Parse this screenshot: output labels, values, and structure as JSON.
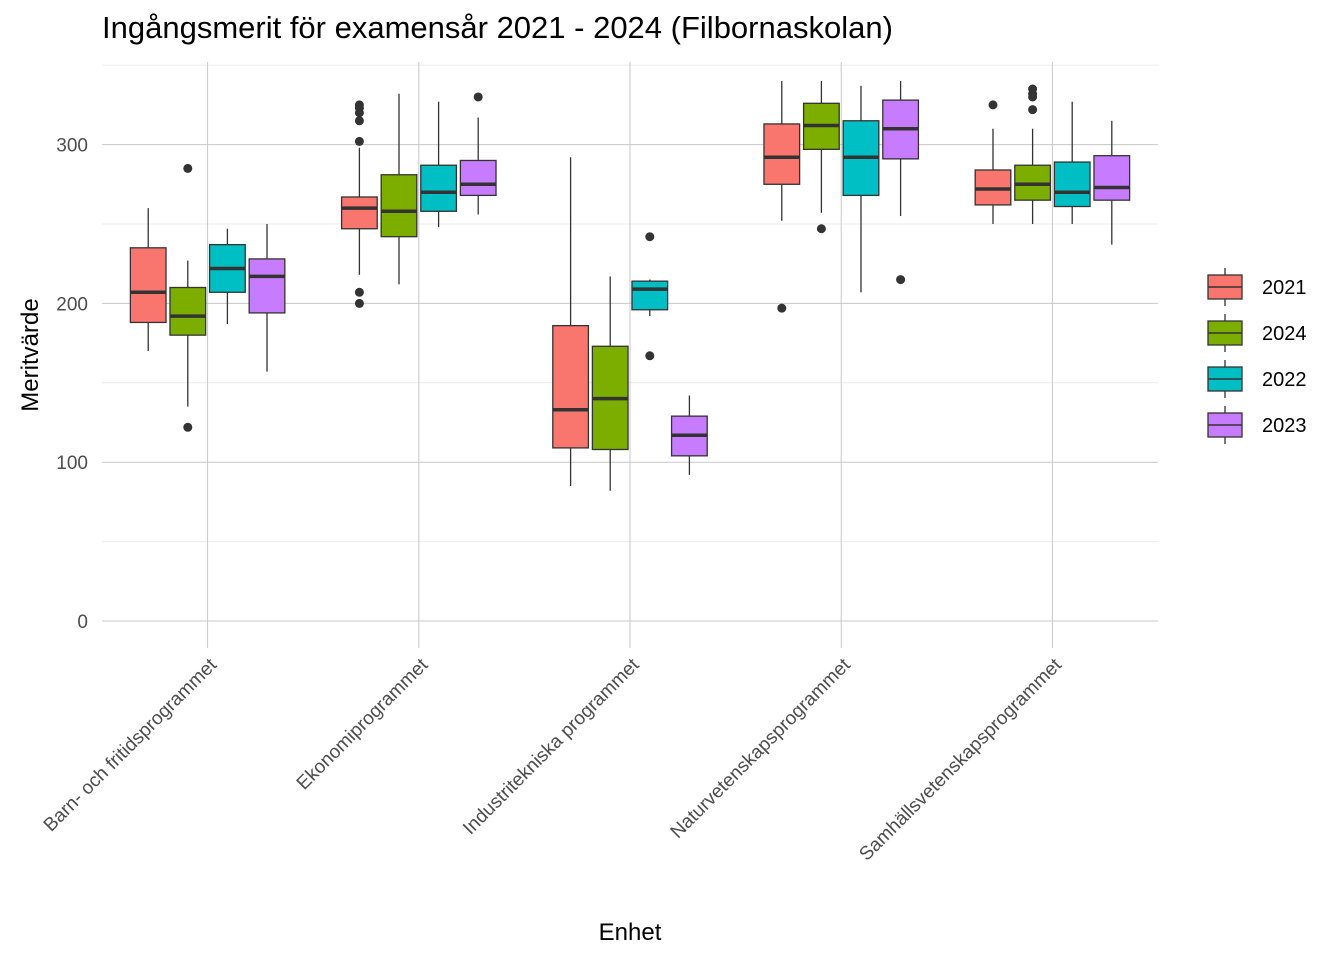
{
  "chart_data": {
    "type": "boxplot",
    "title": "Ingångsmerit för examensår 2021 - 2024 (Filbornaskolan)",
    "xlabel": "Enhet",
    "ylabel": "Meritvärde",
    "ylim": [
      -17,
      352
    ],
    "yticks": [
      0,
      100,
      200,
      300
    ],
    "grid": true,
    "legend": {
      "position": "right",
      "title": ""
    },
    "categories": [
      "Barn- och fritidsprogrammet",
      "Ekonomiprogrammet",
      "Industritekniska programmet",
      "Naturvetenskapsprogrammet",
      "Samhällsvetenskapsprogrammet"
    ],
    "series": [
      {
        "name": "2021",
        "color": "#F8766D",
        "boxes": [
          {
            "min": 170,
            "q1": 188,
            "median": 207,
            "q3": 235,
            "max": 260,
            "outliers": []
          },
          {
            "min": 218,
            "q1": 247,
            "median": 260,
            "q3": 267,
            "max": 298,
            "outliers": [
              200,
              207,
              302,
              315,
              320,
              323,
              325
            ]
          },
          {
            "min": 85,
            "q1": 109,
            "median": 133,
            "q3": 186,
            "max": 292,
            "outliers": []
          },
          {
            "min": 252,
            "q1": 275,
            "median": 292,
            "q3": 313,
            "max": 340,
            "outliers": [
              197
            ]
          },
          {
            "min": 250,
            "q1": 262,
            "median": 272,
            "q3": 284,
            "max": 310,
            "outliers": [
              325
            ]
          }
        ]
      },
      {
        "name": "2024",
        "color": "#7CAE00",
        "boxes": [
          {
            "min": 135,
            "q1": 180,
            "median": 192,
            "q3": 210,
            "max": 227,
            "outliers": [
              122,
              285
            ]
          },
          {
            "min": 212,
            "q1": 242,
            "median": 258,
            "q3": 281,
            "max": 332,
            "outliers": []
          },
          {
            "min": 82,
            "q1": 108,
            "median": 140,
            "q3": 173,
            "max": 217,
            "outliers": []
          },
          {
            "min": 257,
            "q1": 297,
            "median": 312,
            "q3": 326,
            "max": 340,
            "outliers": [
              247
            ]
          },
          {
            "min": 250,
            "q1": 265,
            "median": 275,
            "q3": 287,
            "max": 310,
            "outliers": [
              322,
              330,
              332,
              335
            ]
          }
        ]
      },
      {
        "name": "2022",
        "color": "#00BFC4",
        "boxes": [
          {
            "min": 187,
            "q1": 207,
            "median": 222,
            "q3": 237,
            "max": 247,
            "outliers": []
          },
          {
            "min": 248,
            "q1": 258,
            "median": 270,
            "q3": 287,
            "max": 327,
            "outliers": []
          },
          {
            "min": 192,
            "q1": 196,
            "median": 209,
            "q3": 214,
            "max": 215,
            "outliers": [
              167,
              242
            ]
          },
          {
            "min": 207,
            "q1": 268,
            "median": 292,
            "q3": 315,
            "max": 337,
            "outliers": []
          },
          {
            "min": 250,
            "q1": 261,
            "median": 270,
            "q3": 289,
            "max": 327,
            "outliers": []
          }
        ]
      },
      {
        "name": "2023",
        "color": "#C77CFF",
        "boxes": [
          {
            "min": 157,
            "q1": 194,
            "median": 217,
            "q3": 228,
            "max": 250,
            "outliers": []
          },
          {
            "min": 256,
            "q1": 268,
            "median": 275,
            "q3": 290,
            "max": 317,
            "outliers": [
              330
            ]
          },
          {
            "min": 92,
            "q1": 104,
            "median": 117,
            "q3": 129,
            "max": 142,
            "outliers": []
          },
          {
            "min": 255,
            "q1": 291,
            "median": 310,
            "q3": 328,
            "max": 340,
            "outliers": [
              215
            ]
          },
          {
            "min": 237,
            "q1": 265,
            "median": 273,
            "q3": 293,
            "max": 315,
            "outliers": []
          }
        ]
      }
    ]
  }
}
